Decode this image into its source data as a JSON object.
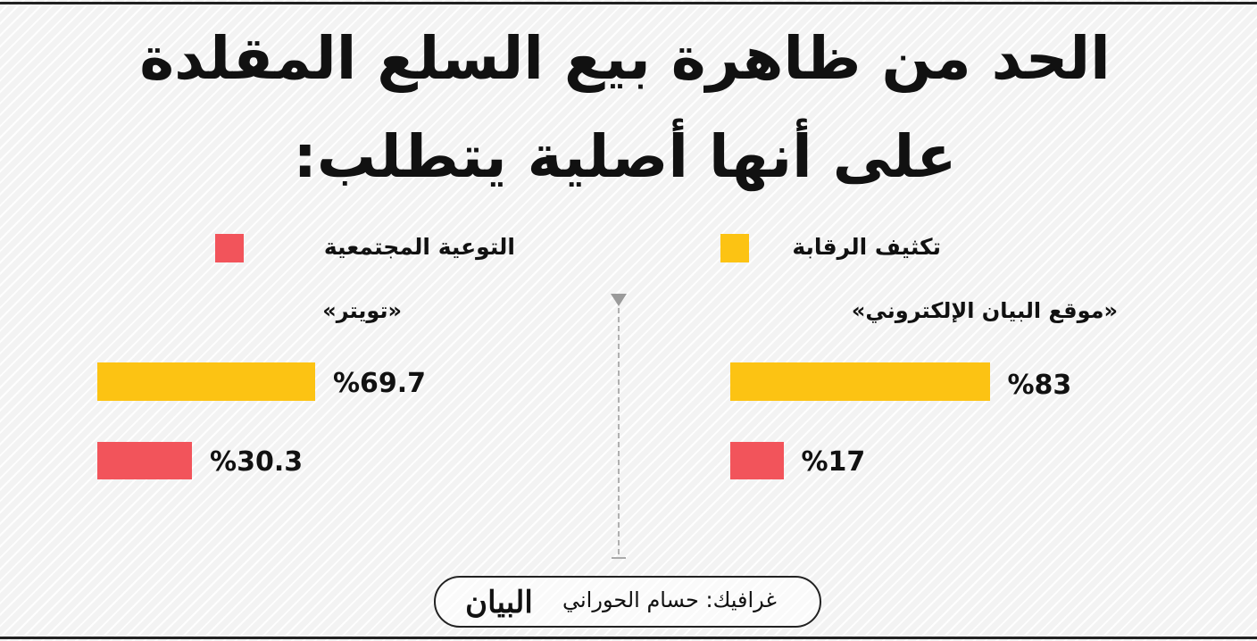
{
  "title_line1": "الحد من ظاهرة بيع السلع المقلدة",
  "title_line2": "على أنها أصلية يتطلب:",
  "legend": [
    {
      "label": "تكثيف الرقابة",
      "color": "#fcc313"
    },
    {
      "label": "التوعية المجتمعية",
      "color": "#f2545b"
    }
  ],
  "credit": {
    "text": "غرافيك: حسام الحوراني",
    "logo_text": "البيان"
  },
  "colors": {
    "yellow": "#fcc313",
    "red": "#f2545b",
    "text": "#111111"
  },
  "chart_data": [
    {
      "type": "bar",
      "title": "«موقع البيان الإلكتروني»",
      "categories": [
        "تكثيف الرقابة",
        "التوعية المجتمعية"
      ],
      "values": [
        83,
        17
      ],
      "labels": [
        "%83",
        "%17"
      ],
      "colors": [
        "#fcc313",
        "#f2545b"
      ],
      "ylim": [
        0,
        100
      ]
    },
    {
      "type": "bar",
      "title": "«تويتر»",
      "categories": [
        "تكثيف الرقابة",
        "التوعية المجتمعية"
      ],
      "values": [
        69.7,
        30.3
      ],
      "labels": [
        "%69.7",
        "%30.3"
      ],
      "colors": [
        "#fcc313",
        "#f2545b"
      ],
      "ylim": [
        0,
        100
      ]
    }
  ]
}
